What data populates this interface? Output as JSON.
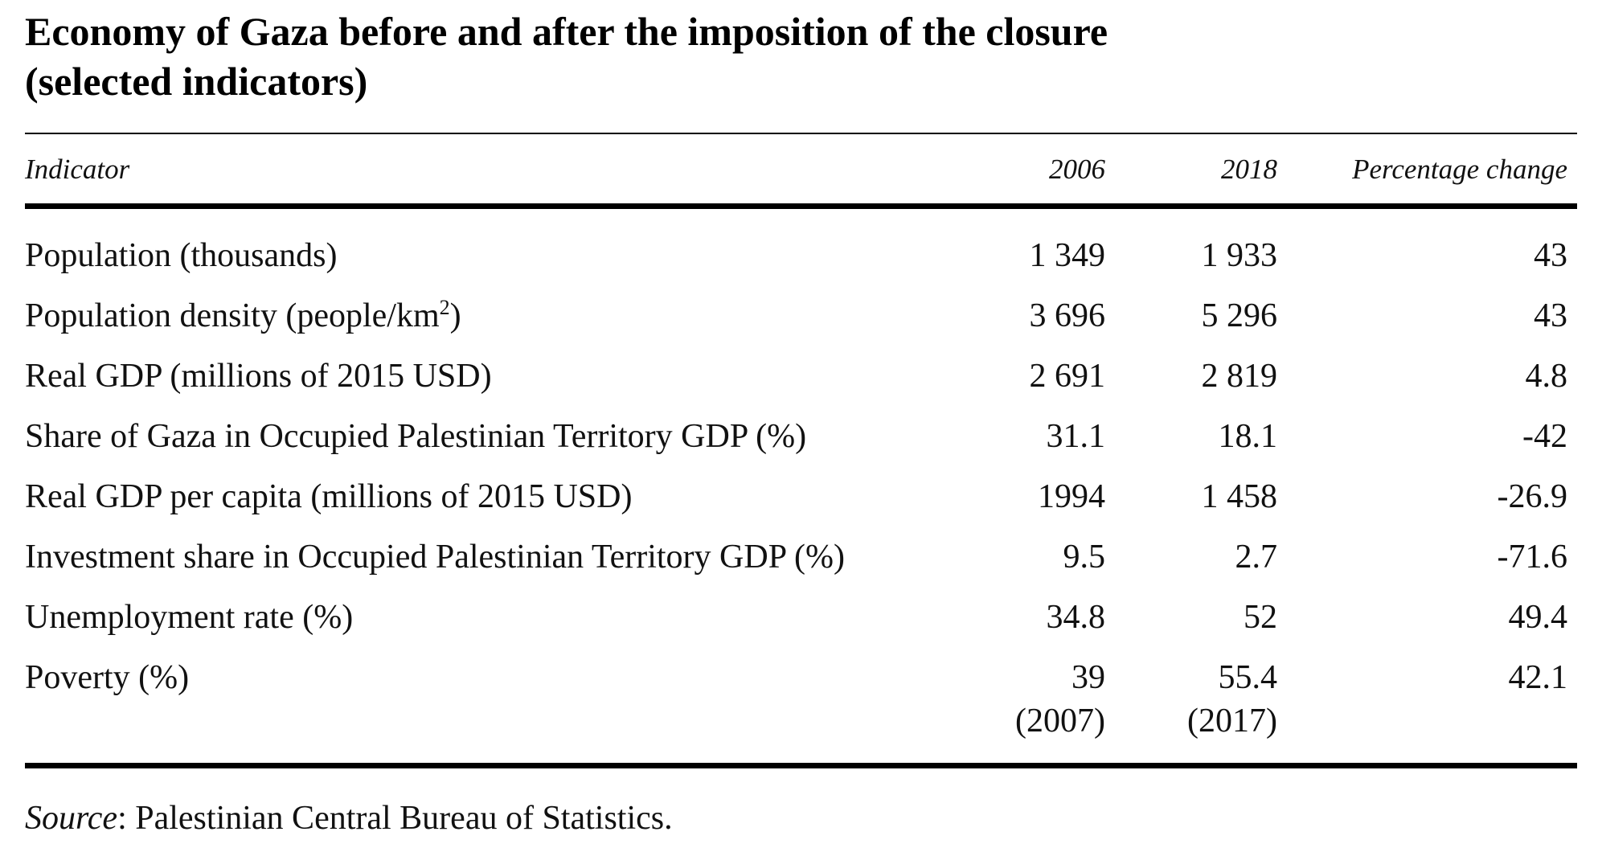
{
  "title": {
    "line1": "Economy of Gaza before and after the imposition of the closure",
    "line2": "(selected indicators)"
  },
  "columns": {
    "indicator": "Indicator",
    "year1": "2006",
    "year2": "2018",
    "change": "Percentage change"
  },
  "rows": [
    {
      "indicator": "Population (thousands)",
      "v2006": "1 349",
      "v2018": "1 933",
      "change": "43"
    },
    {
      "indicator": "Population density (people/km",
      "sup": "2",
      "indicator_tail": ")",
      "v2006": "3 696",
      "v2018": "5 296",
      "change": "43"
    },
    {
      "indicator": "Real GDP (millions of 2015 USD)",
      "v2006": "2 691",
      "v2018": "2 819",
      "change": "4.8"
    },
    {
      "indicator": "Share of Gaza in Occupied Palestinian Territory GDP (%)",
      "v2006": "31.1",
      "v2018": "18.1",
      "change": "-42"
    },
    {
      "indicator": "Real GDP per capita (millions of 2015 USD)",
      "v2006": "1994",
      "v2018": "1 458",
      "change": "-26.9"
    },
    {
      "indicator": "Investment share in Occupied Palestinian Territory GDP (%)",
      "v2006": "9.5",
      "v2018": "2.7",
      "change": "-71.6"
    },
    {
      "indicator": "Unemployment rate (%)",
      "v2006": "34.8",
      "v2018": "52",
      "change": "49.4"
    },
    {
      "indicator": "Poverty (%)",
      "v2006": "39",
      "v2006_note": "(2007)",
      "v2018": "55.4",
      "v2018_note": "(2017)",
      "change": "42.1"
    }
  ],
  "source": {
    "label": "Source",
    "text": ": Palestinian Central Bureau of Statistics."
  }
}
